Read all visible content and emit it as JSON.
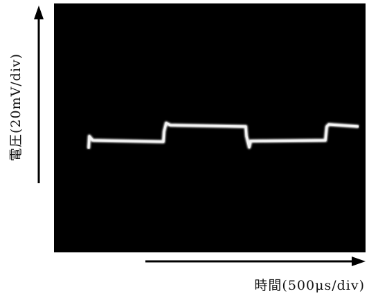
{
  "axis_labels": {
    "y": "電圧(20mV/div)",
    "x": "時間(500μs/div)"
  }
}
